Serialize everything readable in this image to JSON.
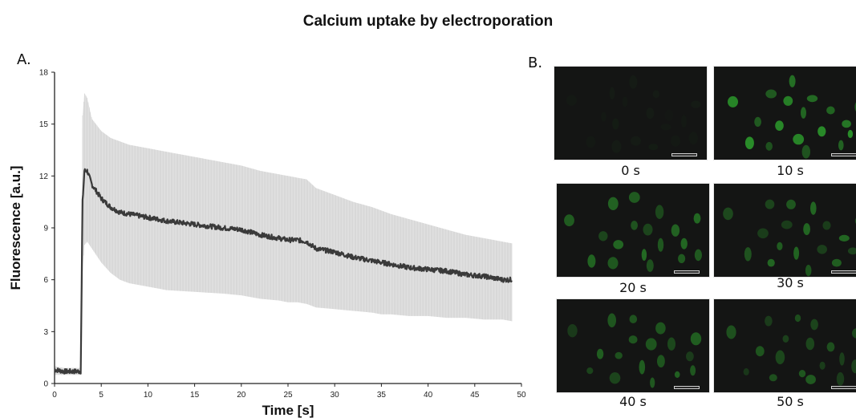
{
  "title": "Calcium uptake by electroporation",
  "panel_a_label": "A.",
  "panel_b_label": "B.",
  "chart_data": {
    "type": "line",
    "title": "Calcium uptake by electroporation",
    "xlabel": "Time [s]",
    "ylabel": "Fluorescence [a.u.]",
    "xlim": [
      0,
      50
    ],
    "ylim": [
      0,
      18
    ],
    "xticks": [
      0,
      5,
      10,
      15,
      20,
      25,
      30,
      35,
      40,
      45,
      50
    ],
    "yticks": [
      0,
      3,
      6,
      9,
      12,
      15,
      18
    ],
    "grid": false,
    "legend": "none",
    "series": [
      {
        "x": [
          0,
          1,
          2,
          2.8,
          3.0,
          3.2,
          3.5,
          4,
          5,
          6,
          7,
          8,
          10,
          12,
          15,
          18,
          20,
          22,
          24,
          25,
          26,
          27,
          28,
          30,
          32,
          34,
          35,
          36,
          38,
          40,
          42,
          44,
          46,
          48,
          49
        ],
        "mean": [
          0.8,
          0.7,
          0.7,
          0.7,
          10.5,
          12.3,
          12.3,
          11.5,
          10.7,
          10.2,
          9.9,
          9.8,
          9.6,
          9.4,
          9.2,
          9.0,
          8.9,
          8.6,
          8.4,
          8.3,
          8.3,
          8.2,
          7.8,
          7.6,
          7.3,
          7.1,
          7.0,
          6.9,
          6.7,
          6.6,
          6.5,
          6.3,
          6.2,
          6.0,
          6.0
        ],
        "upper": [
          1.0,
          0.9,
          0.9,
          0.9,
          15.5,
          16.8,
          16.5,
          15.3,
          14.6,
          14.2,
          14.0,
          13.8,
          13.6,
          13.4,
          13.1,
          12.8,
          12.6,
          12.3,
          12.1,
          12.0,
          11.9,
          11.8,
          11.3,
          10.9,
          10.5,
          10.2,
          10.0,
          9.8,
          9.5,
          9.2,
          8.9,
          8.6,
          8.4,
          8.2,
          8.1
        ],
        "lower": [
          0.5,
          0.5,
          0.5,
          0.5,
          6.5,
          8.0,
          8.2,
          7.8,
          7.0,
          6.4,
          6.0,
          5.8,
          5.6,
          5.4,
          5.3,
          5.2,
          5.1,
          4.9,
          4.8,
          4.7,
          4.7,
          4.6,
          4.4,
          4.3,
          4.2,
          4.1,
          4.0,
          4.0,
          3.9,
          3.9,
          3.8,
          3.8,
          3.7,
          3.7,
          3.6
        ]
      }
    ]
  },
  "images": [
    {
      "label": "0 s",
      "brightness": 0.05
    },
    {
      "label": "10 s",
      "brightness": 0.8
    },
    {
      "label": "20 s",
      "brightness": 0.6
    },
    {
      "label": "30 s",
      "brightness": 0.55
    },
    {
      "label": "40 s",
      "brightness": 0.5
    },
    {
      "label": "50 s",
      "brightness": 0.45
    }
  ],
  "colors": {
    "line": "#3a3a3a",
    "error_band": "#dcdcdc",
    "axis": "#222222",
    "micrograph_background": "#141514",
    "cell_green": "#2fae2f"
  }
}
